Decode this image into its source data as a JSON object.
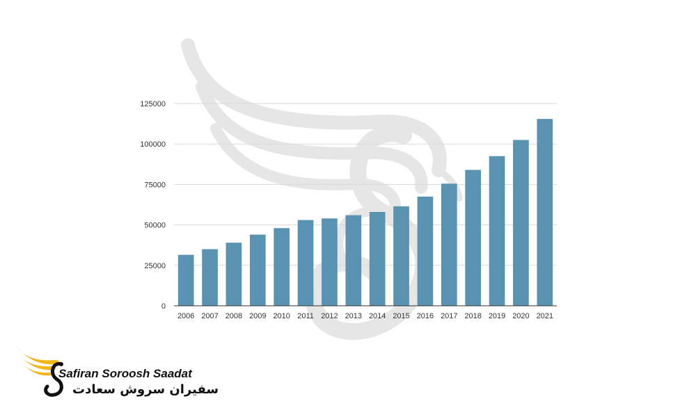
{
  "colors": {
    "bar": "#5a93b2",
    "grid": "#d9d9d9",
    "axis": "#333333",
    "logo_gold": "#f3b616",
    "watermark": "#dddddd"
  },
  "logo": {
    "icon": "bird-wing-logo-icon",
    "name": "Safiran Soroosh Saadat",
    "name_fa": "سفیران سروش سعادت"
  },
  "watermark": {
    "icon": "bird-wing-watermark-icon"
  },
  "chart_data": {
    "type": "bar",
    "title": "",
    "xlabel": "",
    "ylabel": "",
    "categories": [
      "2006",
      "2007",
      "2008",
      "2009",
      "2010",
      "2011",
      "2012",
      "2013",
      "2014",
      "2015",
      "2016",
      "2017",
      "2018",
      "2019",
      "2020",
      "2021"
    ],
    "values": [
      31500,
      35000,
      39000,
      44000,
      48000,
      53000,
      54000,
      56000,
      58000,
      61500,
      67500,
      75500,
      84000,
      92500,
      102500,
      115500
    ],
    "ylim": [
      0,
      125000
    ],
    "yticks": [
      "0",
      "25000",
      "50000",
      "75000",
      "100000",
      "125000"
    ],
    "grid": true,
    "legend": "none"
  }
}
